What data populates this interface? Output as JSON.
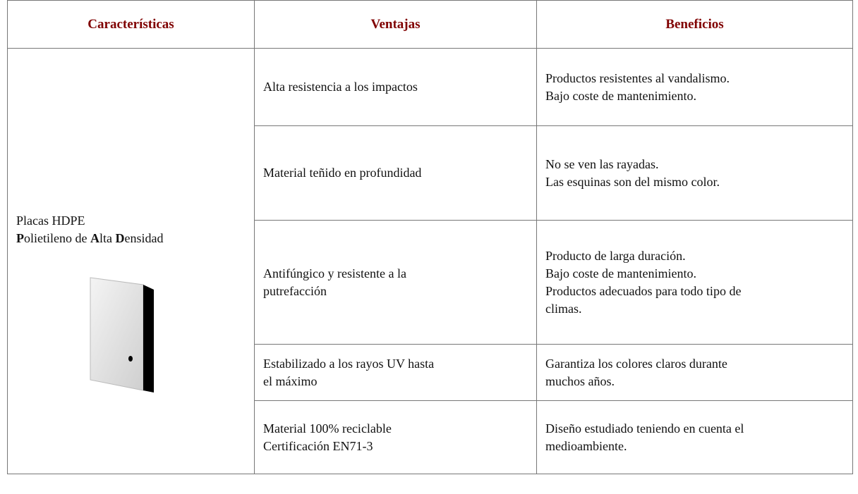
{
  "table": {
    "header": [
      "Características",
      "Ventajas",
      "Beneficios"
    ],
    "characteristic": {
      "line1": "Placas HDPE",
      "line2": [
        "P",
        "olietileno de ",
        "A",
        "lta ",
        "D",
        "ensidad"
      ]
    },
    "rows": [
      {
        "ventajas": [
          "Alta resistencia a los impactos"
        ],
        "beneficios": [
          "Productos resistentes al vandalismo.",
          "Bajo coste de mantenimiento."
        ]
      },
      {
        "ventajas": [
          "Material teñido en profundidad"
        ],
        "beneficios": [
          "No se ven las rayadas.",
          "Las esquinas son del mismo color."
        ]
      },
      {
        "ventajas": [
          "Antifúngico y resistente a la",
          "putrefacción"
        ],
        "beneficios": [
          "Producto de larga duración.",
          "Bajo coste de mantenimiento.",
          "Productos adecuados para todo tipo de",
          "climas."
        ]
      },
      {
        "ventajas": [
          "Estabilizado a los rayos UV hasta",
          "el máximo"
        ],
        "beneficios": [
          "Garantiza los colores claros durante",
          "muchos años."
        ]
      },
      {
        "ventajas": [
          "Material 100% reciclable",
          "Certificación EN71-3"
        ],
        "beneficios": [
          "Diseño estudiado teniendo en cuenta el",
          "medioambiente."
        ]
      }
    ]
  }
}
